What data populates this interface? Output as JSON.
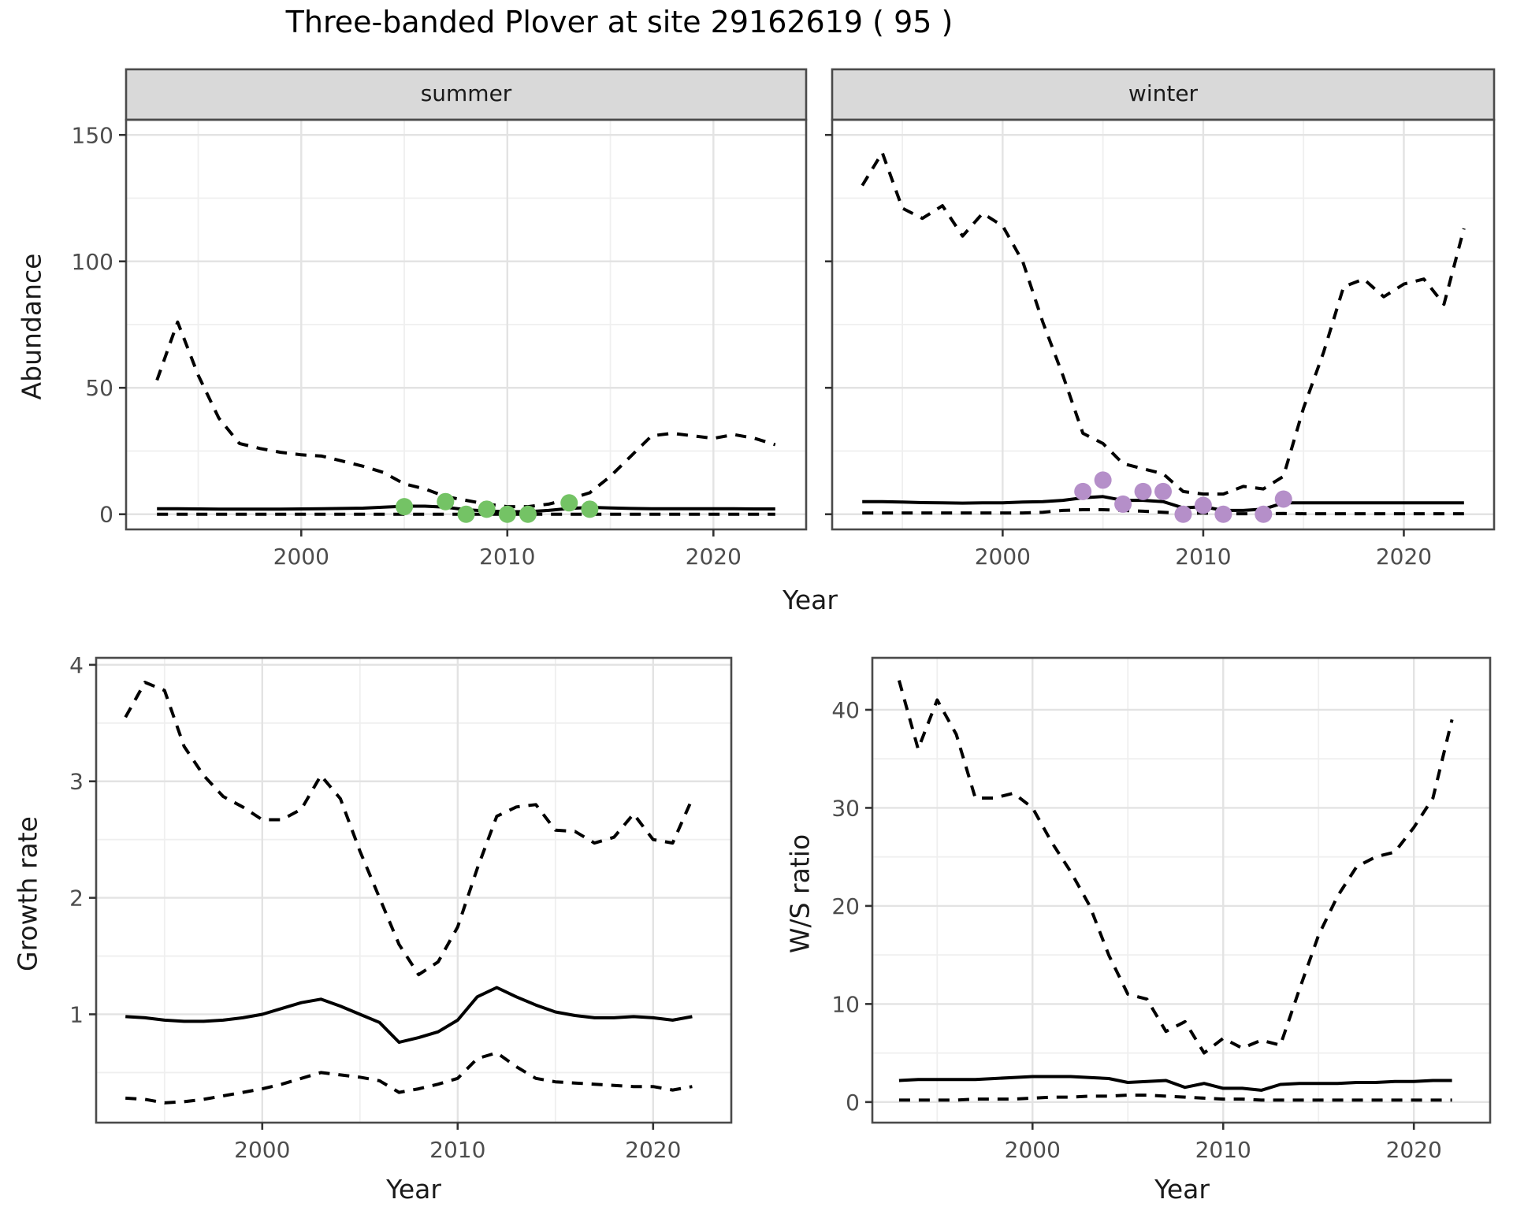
{
  "title": "Three-banded Plover at site 29162619 ( 95 )",
  "labels": {
    "strip_summer": "summer",
    "strip_winter": "winter",
    "y_axis_abundance": "Abundance",
    "y_axis_growth": "Growth rate",
    "y_axis_ws": "W/S ratio",
    "x_axis_year_top": "Year",
    "x_axis_year_growth": "Year",
    "x_axis_year_ws": "Year"
  },
  "colors": {
    "summer_points": "#74c365",
    "winter_points": "#b58fc9",
    "line": "#000000",
    "strip_bg": "#d9d9d9",
    "panel_border": "#4a4a4a",
    "grid_major": "#e3e3e3",
    "grid_minor": "#efefef",
    "tick_mark": "#333333",
    "tick_text": "#4d4d4d"
  },
  "chart_data": [
    {
      "id": "abundance_summer",
      "type": "line+scatter",
      "facet": "summer",
      "xlabel": "Year",
      "ylabel": "Abundance",
      "xlim": [
        1991.5,
        2024.5
      ],
      "ylim": [
        -6,
        156
      ],
      "xticks": [
        2000,
        2010,
        2020
      ],
      "xminor": [
        1995,
        2005,
        2015
      ],
      "yticks": [
        0,
        50,
        100,
        150
      ],
      "yminor": [
        25,
        75,
        125
      ],
      "show_y_tick_labels": true,
      "years": [
        1993,
        1994,
        1995,
        1996,
        1997,
        1998,
        1999,
        2000,
        2001,
        2002,
        2003,
        2004,
        2005,
        2006,
        2007,
        2008,
        2009,
        2010,
        2011,
        2012,
        2013,
        2014,
        2015,
        2016,
        2017,
        2018,
        2019,
        2020,
        2021,
        2022,
        2023
      ],
      "series": [
        {
          "name": "upper_95ci",
          "style": "dashed",
          "values": [
            53,
            76,
            55,
            38,
            28,
            26,
            24.5,
            23.5,
            23,
            21,
            19,
            16.5,
            12,
            10,
            7,
            5.5,
            4,
            3,
            3,
            4,
            6,
            8.5,
            15,
            23,
            31,
            32,
            31,
            30,
            31.5,
            30,
            27.5
          ]
        },
        {
          "name": "fit",
          "style": "solid",
          "values": [
            2.2,
            2.2,
            2.1,
            2.0,
            2.0,
            2.0,
            2.0,
            2.1,
            2.2,
            2.3,
            2.4,
            2.8,
            3.2,
            3.2,
            2.8,
            1.8,
            1.3,
            1.0,
            1.0,
            1.5,
            2.3,
            2.7,
            2.5,
            2.3,
            2.2,
            2.2,
            2.2,
            2.2,
            2.2,
            2.1,
            2.1
          ]
        },
        {
          "name": "lower_95ci",
          "style": "dashed",
          "values": [
            0,
            0,
            0,
            0,
            0,
            0,
            0,
            0,
            0,
            0,
            0,
            0,
            0,
            0,
            0,
            0,
            0,
            0,
            0,
            0,
            0,
            0,
            0,
            0,
            0,
            0,
            0,
            0,
            0,
            0,
            0
          ]
        }
      ],
      "points": {
        "name": "observed_summer_counts",
        "color": "#74c365",
        "x": [
          2005,
          2007,
          2008,
          2009,
          2010,
          2011,
          2013,
          2014
        ],
        "y": [
          3,
          5,
          0,
          2,
          0,
          0,
          4.5,
          2
        ]
      }
    },
    {
      "id": "abundance_winter",
      "type": "line+scatter",
      "facet": "winter",
      "xlabel": "Year",
      "ylabel": "Abundance",
      "xlim": [
        1991.5,
        2024.5
      ],
      "ylim": [
        -6,
        156
      ],
      "xticks": [
        2000,
        2010,
        2020
      ],
      "xminor": [
        1995,
        2005,
        2015
      ],
      "yticks": [
        0,
        50,
        100,
        150
      ],
      "yminor": [
        25,
        75,
        125
      ],
      "show_y_tick_labels": false,
      "years": [
        1993,
        1994,
        1995,
        1996,
        1997,
        1998,
        1999,
        2000,
        2001,
        2002,
        2003,
        2004,
        2005,
        2006,
        2007,
        2008,
        2009,
        2010,
        2011,
        2012,
        2013,
        2014,
        2015,
        2016,
        2017,
        2018,
        2019,
        2020,
        2021,
        2022,
        2023
      ],
      "series": [
        {
          "name": "upper_95ci",
          "style": "dashed",
          "values": [
            130,
            143,
            121,
            117,
            122,
            110,
            119,
            114,
            100,
            76,
            55,
            32,
            28,
            20,
            18,
            16,
            9,
            8,
            8,
            11,
            10,
            15,
            42,
            64,
            90,
            93,
            86,
            91,
            93,
            83,
            113
          ]
        },
        {
          "name": "fit",
          "style": "solid",
          "values": [
            5,
            5,
            4.8,
            4.6,
            4.5,
            4.4,
            4.5,
            4.5,
            4.8,
            5,
            5.5,
            6.5,
            7,
            5.5,
            5.5,
            5,
            2.5,
            3,
            1.5,
            1.5,
            2,
            4.5,
            4.5,
            4.5,
            4.5,
            4.5,
            4.5,
            4.5,
            4.5,
            4.5,
            4.5
          ]
        },
        {
          "name": "lower_95ci",
          "style": "dashed",
          "values": [
            0.5,
            0.5,
            0.5,
            0.5,
            0.5,
            0.5,
            0.5,
            0.5,
            0.5,
            0.8,
            1.5,
            1.8,
            1.8,
            1.5,
            1.2,
            0.8,
            0.3,
            0.5,
            0.2,
            0.2,
            0.2,
            0.3,
            0.2,
            0.2,
            0.2,
            0.2,
            0.2,
            0.2,
            0.2,
            0.2,
            0.2
          ]
        }
      ],
      "points": {
        "name": "observed_winter_counts",
        "color": "#b58fc9",
        "x": [
          2004,
          2005,
          2006,
          2007,
          2008,
          2009,
          2010,
          2011,
          2013,
          2014
        ],
        "y": [
          9,
          13.5,
          4,
          9,
          9,
          0,
          3.5,
          0,
          0,
          6
        ]
      }
    },
    {
      "id": "growth_rate",
      "type": "line",
      "facet": null,
      "xlabel": "Year",
      "ylabel": "Growth rate",
      "xlim": [
        1991.5,
        2024
      ],
      "ylim": [
        0.07,
        4.06
      ],
      "xticks": [
        2000,
        2010,
        2020
      ],
      "xminor": [
        1995,
        2005,
        2015
      ],
      "yticks": [
        1,
        2,
        3,
        4
      ],
      "yminor": [
        0.5,
        1.5,
        2.5,
        3.5
      ],
      "show_y_tick_labels": true,
      "years": [
        1993,
        1994,
        1995,
        1996,
        1997,
        1998,
        1999,
        2000,
        2001,
        2002,
        2003,
        2004,
        2005,
        2006,
        2007,
        2008,
        2009,
        2010,
        2011,
        2012,
        2013,
        2014,
        2015,
        2016,
        2017,
        2018,
        2019,
        2020,
        2021,
        2022
      ],
      "series": [
        {
          "name": "upper_95ci",
          "style": "dashed",
          "values": [
            3.55,
            3.85,
            3.78,
            3.3,
            3.05,
            2.87,
            2.78,
            2.67,
            2.67,
            2.76,
            3.05,
            2.85,
            2.4,
            2.0,
            1.6,
            1.34,
            1.45,
            1.75,
            2.25,
            2.7,
            2.78,
            2.8,
            2.58,
            2.57,
            2.47,
            2.52,
            2.72,
            2.5,
            2.47,
            2.85
          ]
        },
        {
          "name": "fit",
          "style": "solid",
          "values": [
            0.98,
            0.97,
            0.95,
            0.94,
            0.94,
            0.95,
            0.97,
            1.0,
            1.05,
            1.1,
            1.13,
            1.07,
            1.0,
            0.93,
            0.76,
            0.8,
            0.85,
            0.95,
            1.15,
            1.23,
            1.15,
            1.08,
            1.02,
            0.99,
            0.97,
            0.97,
            0.98,
            0.97,
            0.95,
            0.98
          ]
        },
        {
          "name": "lower_95ci",
          "style": "dashed",
          "values": [
            0.28,
            0.27,
            0.24,
            0.25,
            0.27,
            0.3,
            0.33,
            0.36,
            0.4,
            0.45,
            0.5,
            0.48,
            0.46,
            0.43,
            0.33,
            0.36,
            0.4,
            0.45,
            0.62,
            0.67,
            0.55,
            0.45,
            0.42,
            0.41,
            0.4,
            0.39,
            0.38,
            0.38,
            0.35,
            0.38
          ]
        }
      ],
      "points": null
    },
    {
      "id": "ws_ratio",
      "type": "line",
      "facet": null,
      "xlabel": "Year",
      "ylabel": "W/S ratio",
      "xlim": [
        1991.6,
        2024
      ],
      "ylim": [
        -2.1,
        45.3
      ],
      "xticks": [
        2000,
        2010,
        2020
      ],
      "xminor": [
        1995,
        2005,
        2015
      ],
      "yticks": [
        0,
        10,
        20,
        30,
        40
      ],
      "yminor": [
        5,
        15,
        25,
        35
      ],
      "show_y_tick_labels": true,
      "years": [
        1993,
        1994,
        1995,
        1996,
        1997,
        1998,
        1999,
        2000,
        2001,
        2002,
        2003,
        2004,
        2005,
        2006,
        2007,
        2008,
        2009,
        2010,
        2011,
        2012,
        2013,
        2014,
        2015,
        2016,
        2017,
        2018,
        2019,
        2020,
        2021,
        2022
      ],
      "series": [
        {
          "name": "upper_95ci",
          "style": "dashed",
          "values": [
            43,
            36,
            41,
            37.5,
            31,
            31,
            31.5,
            30,
            26.5,
            23.5,
            20,
            15,
            11,
            10.5,
            7.2,
            8.2,
            5,
            6.5,
            5.5,
            6.3,
            5.8,
            11.5,
            17,
            21,
            24,
            25,
            25.5,
            28,
            31,
            39
          ]
        },
        {
          "name": "fit",
          "style": "solid",
          "values": [
            2.2,
            2.3,
            2.3,
            2.3,
            2.3,
            2.4,
            2.5,
            2.6,
            2.6,
            2.6,
            2.5,
            2.4,
            2.0,
            2.1,
            2.2,
            1.5,
            1.9,
            1.4,
            1.4,
            1.2,
            1.8,
            1.9,
            1.9,
            1.9,
            2.0,
            2.0,
            2.1,
            2.1,
            2.2,
            2.2
          ]
        },
        {
          "name": "lower_95ci",
          "style": "dashed",
          "values": [
            0.2,
            0.2,
            0.2,
            0.2,
            0.3,
            0.3,
            0.3,
            0.4,
            0.5,
            0.5,
            0.6,
            0.6,
            0.7,
            0.7,
            0.6,
            0.5,
            0.4,
            0.3,
            0.3,
            0.2,
            0.2,
            0.2,
            0.2,
            0.2,
            0.2,
            0.2,
            0.2,
            0.2,
            0.2,
            0.2
          ]
        }
      ],
      "points": null
    }
  ]
}
